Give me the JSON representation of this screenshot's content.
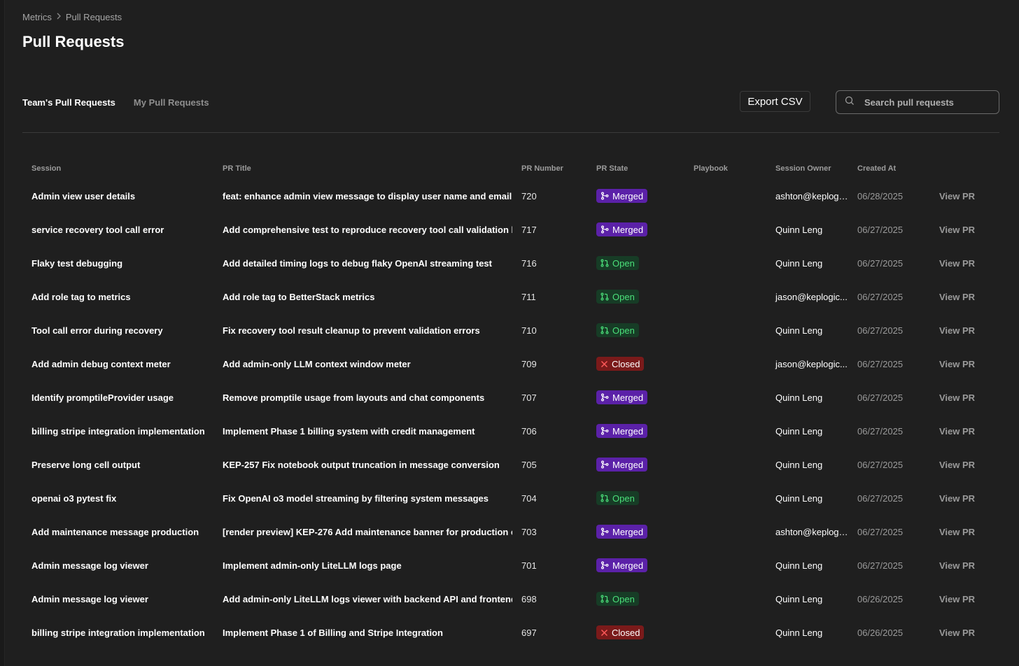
{
  "breadcrumb": {
    "parent": "Metrics",
    "separator_icon": "chevron-right-icon",
    "current": "Pull Requests"
  },
  "page": {
    "title": "Pull Requests"
  },
  "tabs": [
    {
      "label": "Team's Pull Requests",
      "active": true
    },
    {
      "label": "My Pull Requests",
      "active": false
    }
  ],
  "toolbar": {
    "export_label": "Export CSV",
    "search_placeholder": "Search pull requests",
    "search_value": ""
  },
  "table": {
    "headers": [
      "Session",
      "PR Title",
      "PR Number",
      "PR State",
      "Playbook",
      "Session Owner",
      "Created At",
      ""
    ],
    "view_label": "View PR",
    "rows": [
      {
        "session": "Admin view user details",
        "title": "feat: enhance admin view message to display user name and email",
        "number": "720",
        "state": "Merged",
        "playbook": "",
        "owner": "ashton@keplogi...",
        "created": "06/28/2025"
      },
      {
        "session": "service recovery tool call error",
        "title": "Add comprehensive test to reproduce recovery tool call validation b",
        "number": "717",
        "state": "Merged",
        "playbook": "",
        "owner": "Quinn Leng",
        "created": "06/27/2025"
      },
      {
        "session": "Flaky test debugging",
        "title": "Add detailed timing logs to debug flaky OpenAI streaming test",
        "number": "716",
        "state": "Open",
        "playbook": "",
        "owner": "Quinn Leng",
        "created": "06/27/2025"
      },
      {
        "session": "Add role tag to metrics",
        "title": "Add role tag to BetterStack metrics",
        "number": "711",
        "state": "Open",
        "playbook": "",
        "owner": "jason@keplogic...",
        "created": "06/27/2025"
      },
      {
        "session": "Tool call error during recovery",
        "title": "Fix recovery tool result cleanup to prevent validation errors",
        "number": "710",
        "state": "Open",
        "playbook": "",
        "owner": "Quinn Leng",
        "created": "06/27/2025"
      },
      {
        "session": "Add admin debug context meter",
        "title": "Add admin-only LLM context window meter",
        "number": "709",
        "state": "Closed",
        "playbook": "",
        "owner": "jason@keplogic...",
        "created": "06/27/2025"
      },
      {
        "session": "Identify promptileProvider usage",
        "title": "Remove promptile usage from layouts and chat components",
        "number": "707",
        "state": "Merged",
        "playbook": "",
        "owner": "Quinn Leng",
        "created": "06/27/2025"
      },
      {
        "session": "billing stripe integration implementation",
        "title": "Implement Phase 1 billing system with credit management",
        "number": "706",
        "state": "Merged",
        "playbook": "",
        "owner": "Quinn Leng",
        "created": "06/27/2025"
      },
      {
        "session": "Preserve long cell output",
        "title": "KEP-257 Fix notebook output truncation in message conversion",
        "number": "705",
        "state": "Merged",
        "playbook": "",
        "owner": "Quinn Leng",
        "created": "06/27/2025"
      },
      {
        "session": "openai o3 pytest fix",
        "title": "Fix OpenAI o3 model streaming by filtering system messages",
        "number": "704",
        "state": "Open",
        "playbook": "",
        "owner": "Quinn Leng",
        "created": "06/27/2025"
      },
      {
        "session": "Add maintenance message production",
        "title": "[render preview] KEP-276 Add maintenance banner for production e",
        "number": "703",
        "state": "Merged",
        "playbook": "",
        "owner": "ashton@keplogi...",
        "created": "06/27/2025"
      },
      {
        "session": "Admin message log viewer",
        "title": "Implement admin-only LiteLLM logs page",
        "number": "701",
        "state": "Merged",
        "playbook": "",
        "owner": "Quinn Leng",
        "created": "06/27/2025"
      },
      {
        "session": "Admin message log viewer",
        "title": "Add admin-only LiteLLM logs viewer with backend API and frontend",
        "number": "698",
        "state": "Open",
        "playbook": "",
        "owner": "Quinn Leng",
        "created": "06/26/2025"
      },
      {
        "session": "billing stripe integration implementation",
        "title": "Implement Phase 1 of Billing and Stripe Integration",
        "number": "697",
        "state": "Closed",
        "playbook": "",
        "owner": "Quinn Leng",
        "created": "06/26/2025"
      }
    ]
  },
  "state_icons": {
    "Merged": "git-merge-icon",
    "Open": "git-pull-request-icon",
    "Closed": "x-icon"
  },
  "colors": {
    "merged_bg": "#5b21a8",
    "open_bg": "#173c26",
    "open_text": "#4be07a",
    "closed_bg": "#7a1a1a",
    "background": "#1f1f1f"
  }
}
